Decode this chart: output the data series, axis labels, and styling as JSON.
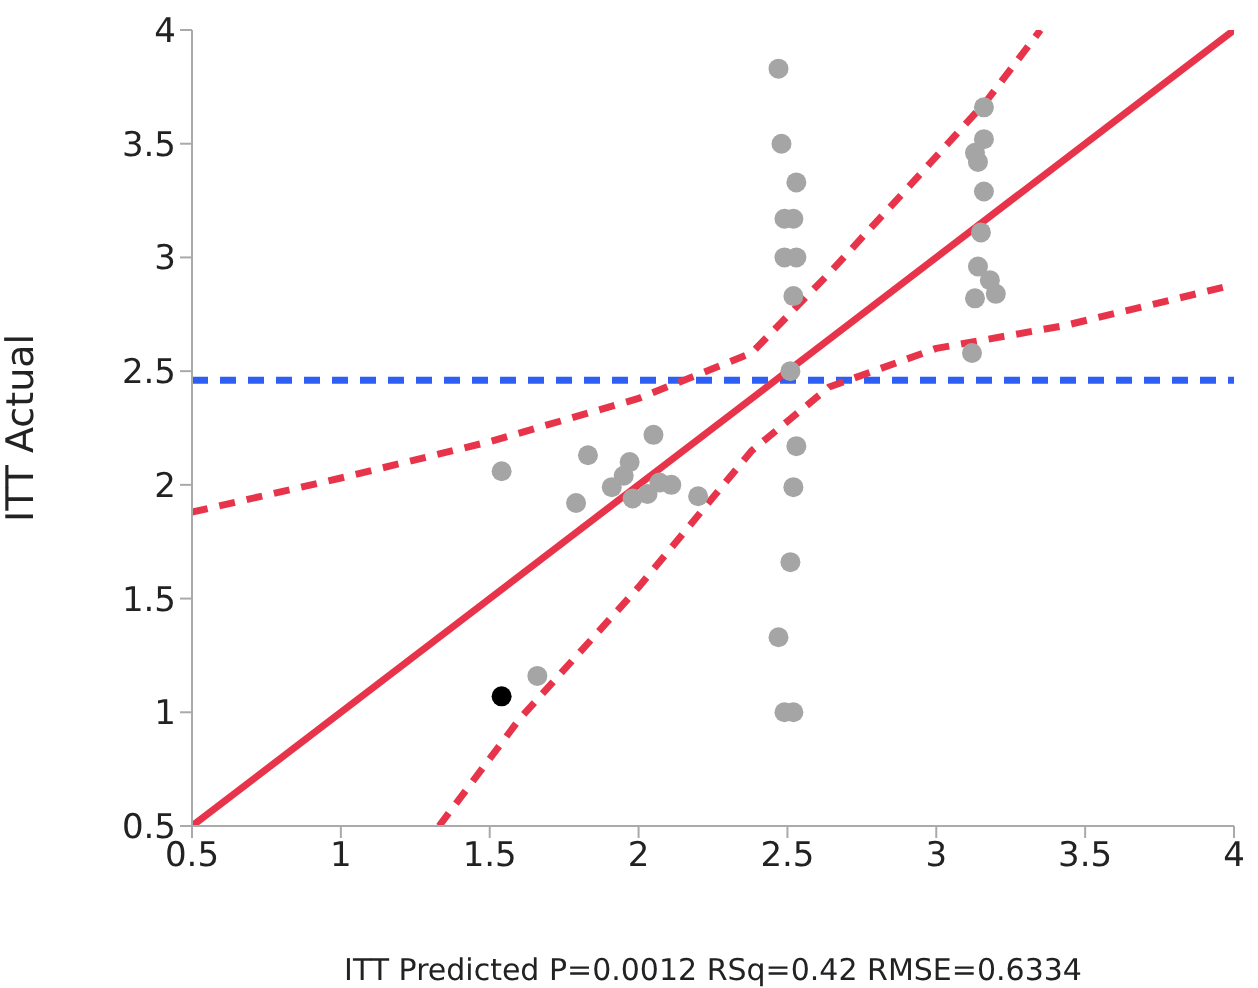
{
  "chart_data": {
    "type": "scatter",
    "xlabel": "ITT Predicted P=0.0012 RSq=0.42 RMSE=0.6334",
    "ylabel": "ITT Actual",
    "xlim": [
      0.5,
      4
    ],
    "xticks": [
      0.5,
      1,
      1.5,
      2,
      2.5,
      3,
      3.5,
      4
    ],
    "ylim": [
      0.5,
      4
    ],
    "yticks": [
      0.5,
      1,
      1.5,
      2,
      2.5,
      3,
      3.5,
      4
    ],
    "grid": false,
    "marker": "circle",
    "ref_lines": [
      {
        "axis": "y",
        "value": 2.46,
        "color": "#2e5ff5",
        "line_style": "dashed"
      }
    ],
    "series": [
      {
        "color": "#a5a5a5",
        "x": [
          1.54,
          1.83,
          2.05,
          1.97,
          1.95,
          1.91,
          1.79,
          1.98,
          2.03,
          2.07,
          2.11,
          2.2,
          1.66,
          2.47,
          2.48,
          2.53,
          2.49,
          2.52,
          2.53,
          2.49,
          2.52,
          2.51,
          2.53,
          2.52,
          2.51,
          2.47,
          2.49,
          2.52,
          3.16,
          3.16,
          3.13,
          3.14,
          3.16,
          3.15,
          3.14,
          3.18,
          3.2,
          3.13,
          3.12
        ],
        "values": [
          2.06,
          2.13,
          2.22,
          2.1,
          2.04,
          1.99,
          1.92,
          1.94,
          1.96,
          2.01,
          2.0,
          1.95,
          1.16,
          3.83,
          3.5,
          3.33,
          3.17,
          3.17,
          3.0,
          3.0,
          2.83,
          2.5,
          2.17,
          1.99,
          1.66,
          1.33,
          1.0,
          1.0,
          3.66,
          3.52,
          3.46,
          3.42,
          3.29,
          3.11,
          2.96,
          2.9,
          2.84,
          2.82,
          2.58
        ]
      },
      {
        "color": "#000000",
        "x": [
          1.54
        ],
        "values": [
          1.07
        ]
      },
      {
        "type": "line",
        "color": "#e8344a",
        "line_style": "solid",
        "marker": "none",
        "x": [
          0.5,
          4
        ],
        "values": [
          0.5,
          4
        ]
      },
      {
        "type": "line",
        "color": "#e8344a",
        "line_style": "dashed",
        "marker": "none",
        "x": [
          0.5,
          1,
          1.5,
          2,
          2.38,
          2.64,
          2.9,
          3.17,
          3.35
        ],
        "values": [
          1.88,
          2.03,
          2.19,
          2.38,
          2.58,
          2.93,
          3.3,
          3.69,
          4
        ]
      },
      {
        "type": "line",
        "color": "#e8344a",
        "line_style": "dashed",
        "marker": "none",
        "x": [
          1.33,
          1.6,
          2,
          2.38,
          2.64,
          3,
          3.43,
          4
        ],
        "values": [
          0.5,
          0.97,
          1.55,
          2.15,
          2.43,
          2.6,
          2.7,
          2.88
        ]
      }
    ]
  }
}
